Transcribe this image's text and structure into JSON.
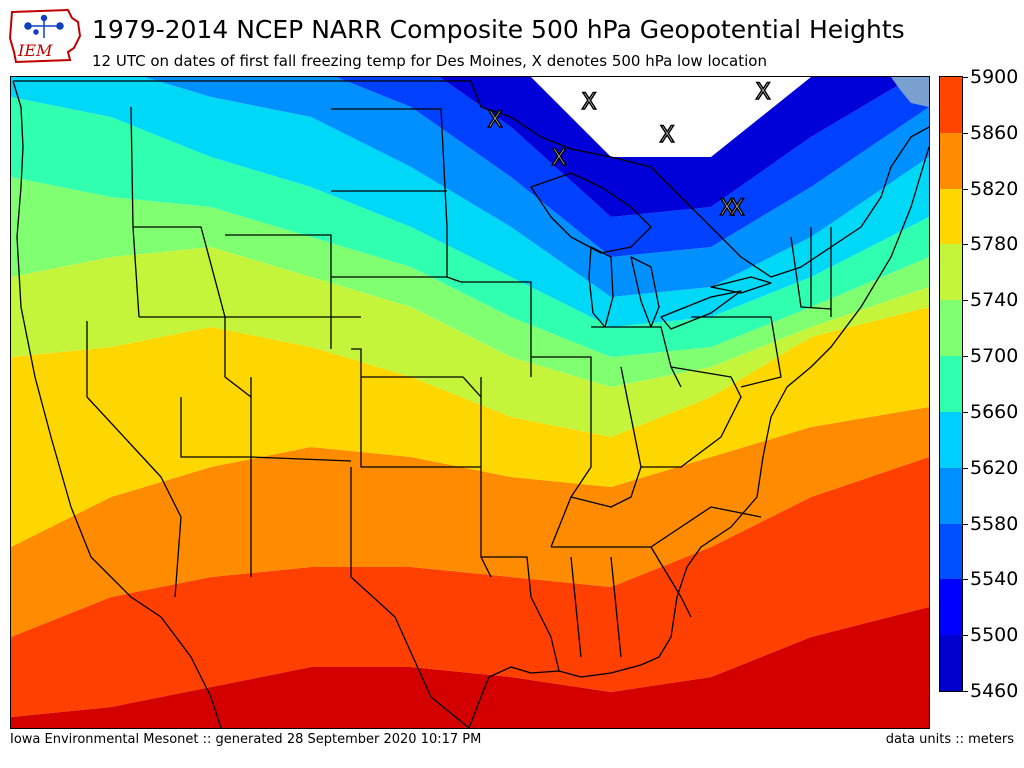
{
  "header": {
    "logo_text": "IEM",
    "title": "1979-2014 NCEP NARR Composite 500 hPa Geopotential Heights",
    "subtitle": "12 UTC on dates of first fall freezing temp for Des Moines, X denotes 500 hPa low location"
  },
  "map": {
    "region": "Contiguous United States",
    "low_marker_symbol": "X",
    "low_marker_count": 8,
    "bands_from_south": [
      {
        "min": 5860,
        "max": 5900,
        "color": "#d40000"
      },
      {
        "min": 5820,
        "max": 5860,
        "color": "#ff4000"
      },
      {
        "min": 5780,
        "max": 5820,
        "color": "#ff8c00"
      },
      {
        "min": 5740,
        "max": 5780,
        "color": "#ffd700"
      },
      {
        "min": 5700,
        "max": 5740,
        "color": "#c4f53a"
      },
      {
        "min": 5660,
        "max": 5700,
        "color": "#80ff70"
      },
      {
        "min": 5620,
        "max": 5660,
        "color": "#30ffb0"
      },
      {
        "min": 5580,
        "max": 5620,
        "color": "#00d8f8"
      },
      {
        "min": 5540,
        "max": 5580,
        "color": "#0090ff"
      },
      {
        "min": 5500,
        "max": 5540,
        "color": "#0040ff"
      },
      {
        "min": 5460,
        "max": 5500,
        "color": "#0000d8"
      }
    ],
    "ocean_corner_color": "#7aa0d0"
  },
  "colorbar": {
    "ticks": [
      "5460",
      "5500",
      "5540",
      "5580",
      "5620",
      "5660",
      "5700",
      "5740",
      "5780",
      "5820",
      "5860",
      "5900"
    ],
    "colors": [
      "#0000cd",
      "#0000ff",
      "#0050ff",
      "#0090ff",
      "#00d0ff",
      "#30ffb0",
      "#80ff70",
      "#c4f53a",
      "#ffd700",
      "#ff8c00",
      "#ff4500",
      "#d40000"
    ]
  },
  "footer": {
    "left": "Iowa Environmental Mesonet :: generated 28 September 2020 10:17 PM",
    "right": "data units :: meters"
  }
}
